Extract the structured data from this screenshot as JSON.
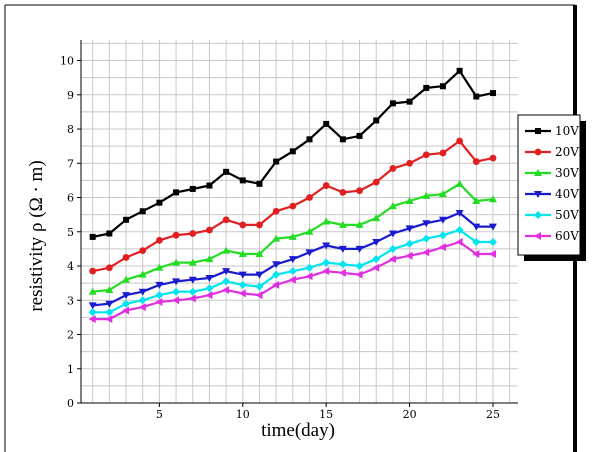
{
  "chart_data": {
    "type": "line",
    "xlabel": "time(day)",
    "ylabel": "resistivity  ρ (Ω · m)",
    "xlim": [
      0.3,
      26.5
    ],
    "ylim": [
      0,
      10.6
    ],
    "xticks": [
      5,
      10,
      15,
      20,
      25
    ],
    "yticks": [
      0,
      1,
      2,
      3,
      4,
      5,
      6,
      7,
      8,
      9,
      10
    ],
    "grid": true,
    "legend_position": "right",
    "x": [
      1,
      2,
      3,
      4,
      5,
      6,
      7,
      8,
      9,
      10,
      11,
      12,
      13,
      14,
      15,
      16,
      17,
      18,
      19,
      20,
      21,
      22,
      23,
      24,
      25
    ],
    "series": [
      {
        "name": "10V",
        "color": "#000000",
        "marker": "square",
        "values": [
          4.85,
          4.95,
          5.35,
          5.6,
          5.85,
          6.15,
          6.25,
          6.35,
          6.75,
          6.5,
          6.4,
          7.05,
          7.35,
          7.7,
          8.15,
          7.7,
          7.8,
          8.25,
          8.75,
          8.8,
          9.2,
          9.25,
          9.7,
          8.95,
          9.05
        ]
      },
      {
        "name": "20V",
        "color": "#e02020",
        "marker": "circle",
        "values": [
          3.85,
          3.95,
          4.25,
          4.45,
          4.75,
          4.9,
          4.95,
          5.05,
          5.35,
          5.2,
          5.2,
          5.6,
          5.75,
          6.0,
          6.35,
          6.15,
          6.2,
          6.45,
          6.85,
          7.0,
          7.25,
          7.3,
          7.65,
          7.05,
          7.15
        ]
      },
      {
        "name": "30V",
        "color": "#22dd22",
        "marker": "triangle-up",
        "values": [
          3.25,
          3.3,
          3.6,
          3.75,
          3.95,
          4.1,
          4.1,
          4.2,
          4.45,
          4.35,
          4.35,
          4.8,
          4.85,
          5.0,
          5.3,
          5.2,
          5.2,
          5.4,
          5.75,
          5.9,
          6.05,
          6.1,
          6.4,
          5.9,
          5.95
        ]
      },
      {
        "name": "40V",
        "color": "#1a1ad0",
        "marker": "triangle-down",
        "values": [
          2.85,
          2.9,
          3.15,
          3.25,
          3.45,
          3.55,
          3.6,
          3.65,
          3.85,
          3.75,
          3.75,
          4.05,
          4.2,
          4.4,
          4.6,
          4.5,
          4.5,
          4.7,
          4.95,
          5.1,
          5.25,
          5.35,
          5.55,
          5.15,
          5.15
        ]
      },
      {
        "name": "50V",
        "color": "#00e5ee",
        "marker": "diamond",
        "values": [
          2.65,
          2.65,
          2.9,
          3.0,
          3.15,
          3.25,
          3.25,
          3.35,
          3.55,
          3.45,
          3.4,
          3.75,
          3.85,
          3.95,
          4.1,
          4.05,
          4.0,
          4.2,
          4.5,
          4.65,
          4.8,
          4.9,
          5.05,
          4.7,
          4.7
        ]
      },
      {
        "name": "60V",
        "color": "#e030e0",
        "marker": "triangle-left",
        "values": [
          2.45,
          2.45,
          2.7,
          2.8,
          2.95,
          3.0,
          3.05,
          3.15,
          3.3,
          3.2,
          3.15,
          3.45,
          3.6,
          3.7,
          3.85,
          3.8,
          3.75,
          3.95,
          4.2,
          4.3,
          4.4,
          4.55,
          4.7,
          4.35,
          4.35
        ]
      }
    ]
  }
}
